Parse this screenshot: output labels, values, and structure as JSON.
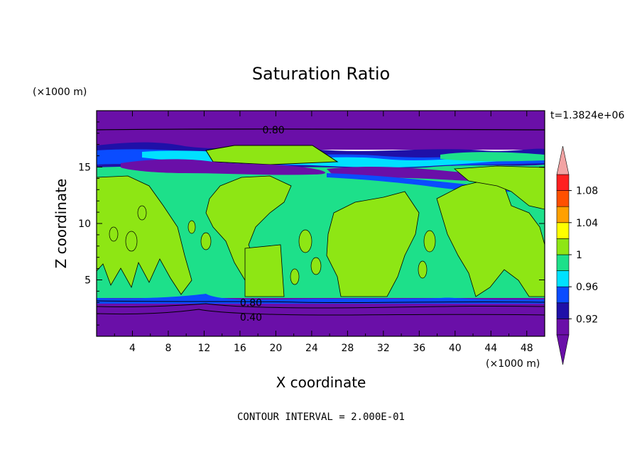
{
  "chart_data": {
    "type": "heatmap",
    "title": "Saturation Ratio",
    "xlabel": "X coordinate",
    "ylabel": "Z coordinate",
    "x_unit": "(×1000 m)",
    "y_unit": "(×1000 m)",
    "time_label": "t=1.3824e+06",
    "footer": "CONTOUR INTERVAL = 2.000E-01",
    "xlim": [
      0,
      50
    ],
    "ylim": [
      0,
      20
    ],
    "x_ticks": [
      4,
      8,
      12,
      16,
      20,
      24,
      28,
      32,
      36,
      40,
      44,
      48
    ],
    "y_ticks": [
      5,
      10,
      15
    ],
    "colorbar": {
      "levels": [
        0.9,
        0.92,
        0.94,
        0.96,
        0.98,
        1.0,
        1.02,
        1.04,
        1.06,
        1.08,
        1.1
      ],
      "colors": [
        "#6a0fa8",
        "#1f10a8",
        "#0a4cff",
        "#00e1ff",
        "#1de08a",
        "#8ee614",
        "#ffff00",
        "#ffa000",
        "#ff5000",
        "#ff2020"
      ],
      "under_color": "#6a0fa8",
      "over_color": "#f2a3a3",
      "tick_labels": [
        "0.92",
        "0.96",
        "1",
        "1.04",
        "1.08"
      ]
    },
    "contour_labels": [
      {
        "label": "0.80",
        "x": 18.5,
        "z": 18.3
      },
      {
        "label": "0.80",
        "x": 16.0,
        "z": 3.0
      },
      {
        "label": "0.40",
        "x": 16.0,
        "z": 1.7
      }
    ]
  }
}
